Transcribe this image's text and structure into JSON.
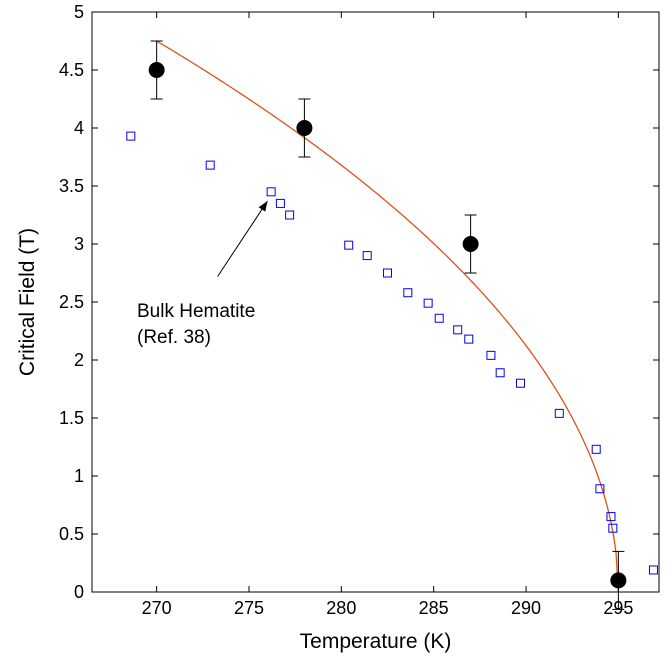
{
  "chart_data": {
    "type": "scatter",
    "xlabel": "Temperature (K)",
    "ylabel": "Critical Field (T)",
    "xlim": [
      266.5,
      297.2
    ],
    "ylim": [
      0,
      5
    ],
    "xticks": [
      270,
      275,
      280,
      285,
      290,
      295
    ],
    "yticks": [
      0,
      0.5,
      1,
      1.5,
      2,
      2.5,
      3,
      3.5,
      4,
      4.5,
      5
    ],
    "ytick_labels": [
      "0",
      "0.5",
      "1",
      "1.5",
      "2",
      "2.5",
      "3",
      "3.5",
      "4",
      "4.5",
      "5"
    ],
    "grid": false,
    "colors": {
      "bulk": "#0000ff",
      "sample": "#000000",
      "fit": "#d95319"
    },
    "series": [
      {
        "marker": "filled-circle-with-errorbars",
        "points": [
          {
            "x": 270,
            "y": 4.5,
            "err": 0.25
          },
          {
            "x": 278,
            "y": 4.0,
            "err": 0.25
          },
          {
            "x": 287,
            "y": 3.0,
            "err": 0.25
          },
          {
            "x": 295,
            "y": 0.1,
            "err": 0.25
          }
        ]
      },
      {
        "marker": "open-square",
        "points": [
          {
            "x": 268.6,
            "y": 3.93
          },
          {
            "x": 272.9,
            "y": 3.68
          },
          {
            "x": 276.2,
            "y": 3.45
          },
          {
            "x": 276.7,
            "y": 3.35
          },
          {
            "x": 277.2,
            "y": 3.25
          },
          {
            "x": 280.4,
            "y": 2.99
          },
          {
            "x": 281.4,
            "y": 2.9
          },
          {
            "x": 282.5,
            "y": 2.75
          },
          {
            "x": 283.6,
            "y": 2.58
          },
          {
            "x": 284.7,
            "y": 2.49
          },
          {
            "x": 285.3,
            "y": 2.36
          },
          {
            "x": 286.3,
            "y": 2.26
          },
          {
            "x": 286.9,
            "y": 2.18
          },
          {
            "x": 288.1,
            "y": 2.04
          },
          {
            "x": 288.6,
            "y": 1.89
          },
          {
            "x": 289.7,
            "y": 1.8
          },
          {
            "x": 291.8,
            "y": 1.54
          },
          {
            "x": 293.8,
            "y": 1.23
          },
          {
            "x": 294.0,
            "y": 0.89
          },
          {
            "x": 294.6,
            "y": 0.65
          },
          {
            "x": 294.7,
            "y": 0.55
          },
          {
            "x": 296.9,
            "y": 0.19
          }
        ]
      },
      {
        "marker": "line",
        "fit": {
          "Tc": 295.0,
          "Tstart": 270,
          "Tend": 295.0,
          "H0": 4.75,
          "exponent": 0.5
        }
      }
    ],
    "annotations": [
      {
        "text_lines": [
          "Bulk Hematite",
          "(Ref. 38)"
        ],
        "arrow_to": {
          "x": 276.0,
          "y": 3.37
        },
        "arrow_from": {
          "x": 273.3,
          "y": 2.72
        }
      }
    ]
  }
}
